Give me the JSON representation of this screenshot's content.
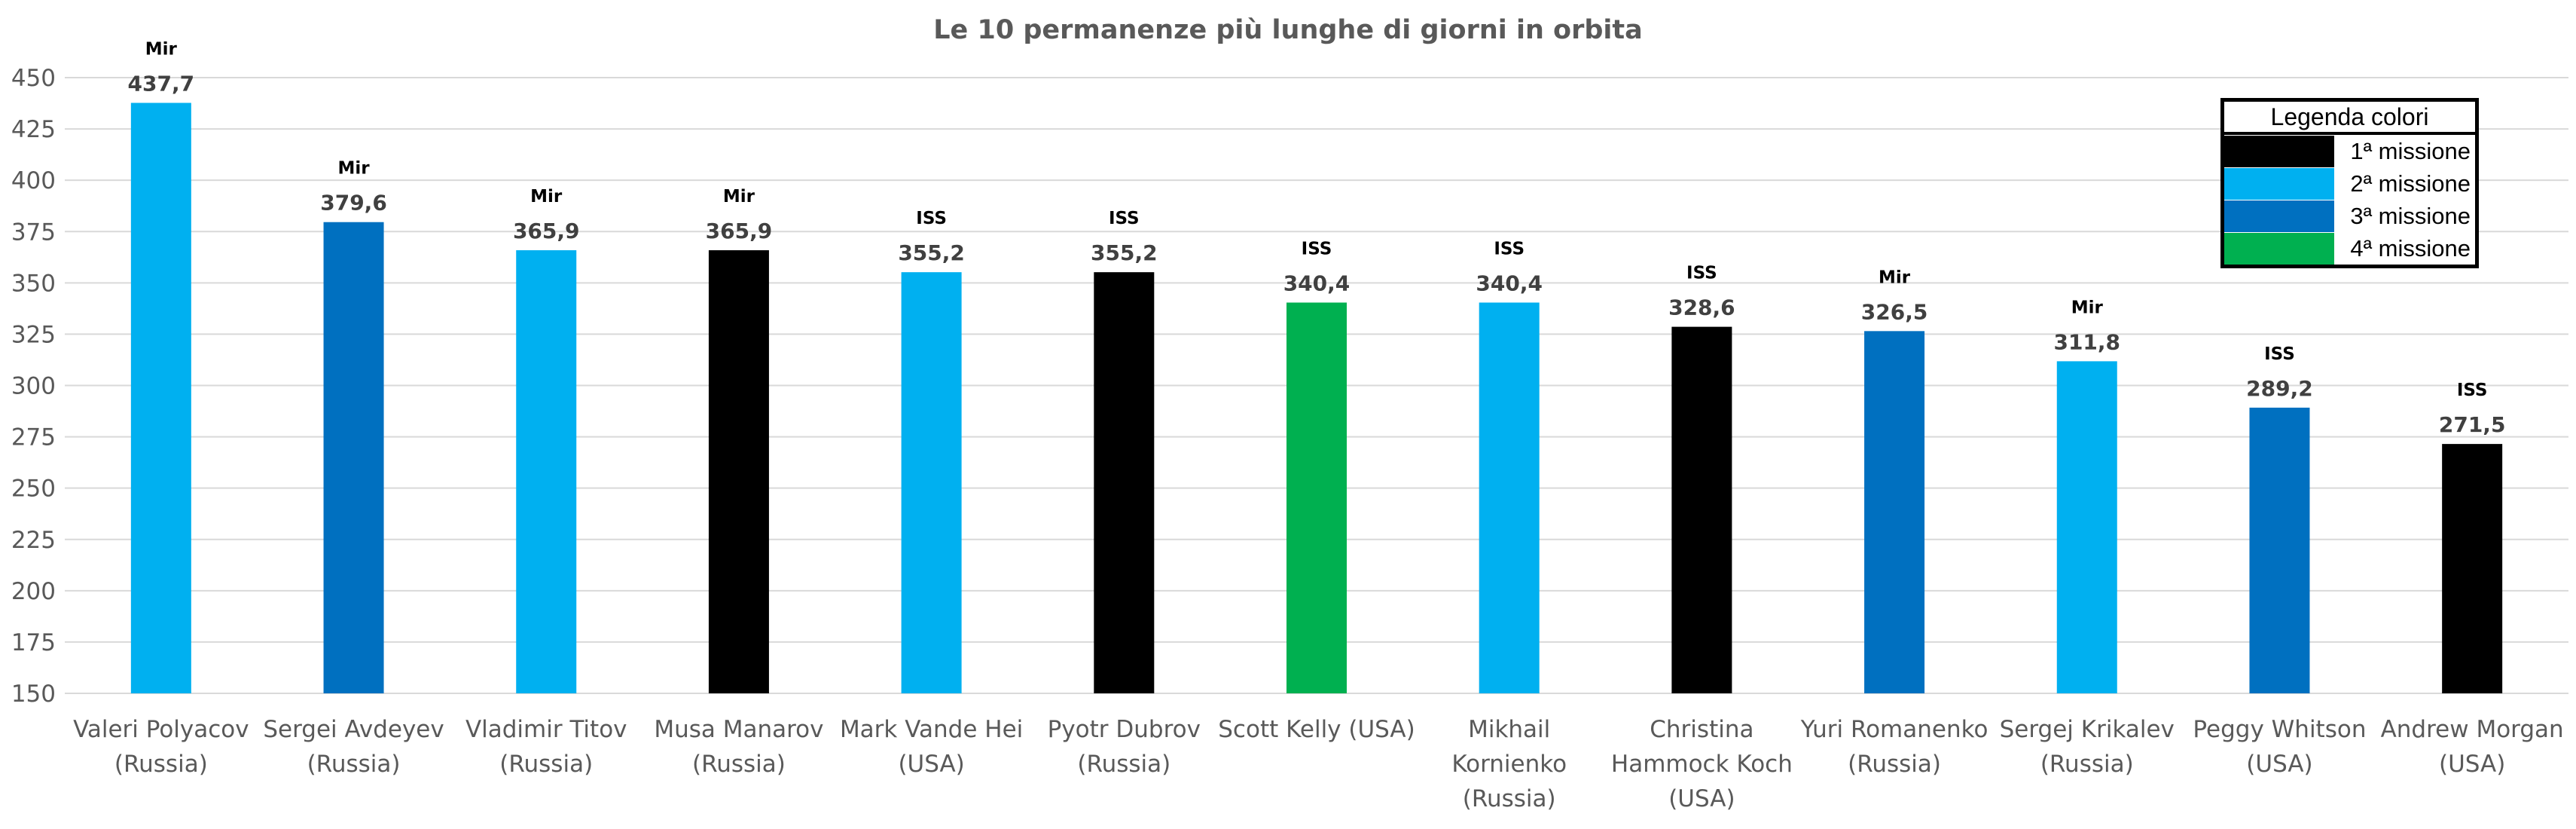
{
  "chart_data": {
    "type": "bar",
    "title": "Le 10 permanenze più lunghe di giorni in orbita",
    "categories": [
      [
        "Valeri Polyacov",
        "(Russia)"
      ],
      [
        "Sergei Avdeyev",
        "(Russia)"
      ],
      [
        "Vladimir Titov",
        "(Russia)"
      ],
      [
        "Musa Manarov",
        "(Russia)"
      ],
      [
        "Mark Vande Hei",
        "(USA)"
      ],
      [
        "Pyotr Dubrov",
        "(Russia)"
      ],
      [
        "Scott Kelly (USA)"
      ],
      [
        "Mikhail",
        "Kornienko",
        "(Russia)"
      ],
      [
        "Christina",
        "Hammock Koch",
        "(USA)"
      ],
      [
        "Yuri Romanenko",
        "(Russia)"
      ],
      [
        "Sergej Krikalev",
        "(Russia)"
      ],
      [
        "Peggy Whitson",
        "(USA)"
      ],
      [
        "Andrew Morgan",
        "(USA)"
      ]
    ],
    "values": [
      437.7,
      379.6,
      365.9,
      365.9,
      355.2,
      355.2,
      340.4,
      340.4,
      328.6,
      326.5,
      311.8,
      289.2,
      271.5
    ],
    "value_labels": [
      "437,7",
      "379,6",
      "365,9",
      "365,9",
      "355,2",
      "355,2",
      "340,4",
      "340,4",
      "328,6",
      "326,5",
      "311,8",
      "289,2",
      "271,5"
    ],
    "stations": [
      "Mir",
      "Mir",
      "Mir",
      "Mir",
      "ISS",
      "ISS",
      "ISS",
      "ISS",
      "ISS",
      "Mir",
      "Mir",
      "ISS",
      "ISS"
    ],
    "missions": [
      2,
      3,
      2,
      1,
      2,
      1,
      4,
      2,
      1,
      3,
      2,
      3,
      1
    ],
    "ylim": [
      150,
      450
    ],
    "yticks": [
      150,
      175,
      200,
      225,
      250,
      275,
      300,
      325,
      350,
      375,
      400,
      425,
      450
    ],
    "grid": true,
    "legend_placement": "top-right"
  },
  "legend": {
    "title": "Legenda colori",
    "items": [
      {
        "label": "1ª missione",
        "color": "#000000"
      },
      {
        "label": "2ª missione",
        "color": "#00B0F0"
      },
      {
        "label": "3ª missione",
        "color": "#0070C0"
      },
      {
        "label": "4ª missione",
        "color": "#00B050"
      }
    ]
  }
}
